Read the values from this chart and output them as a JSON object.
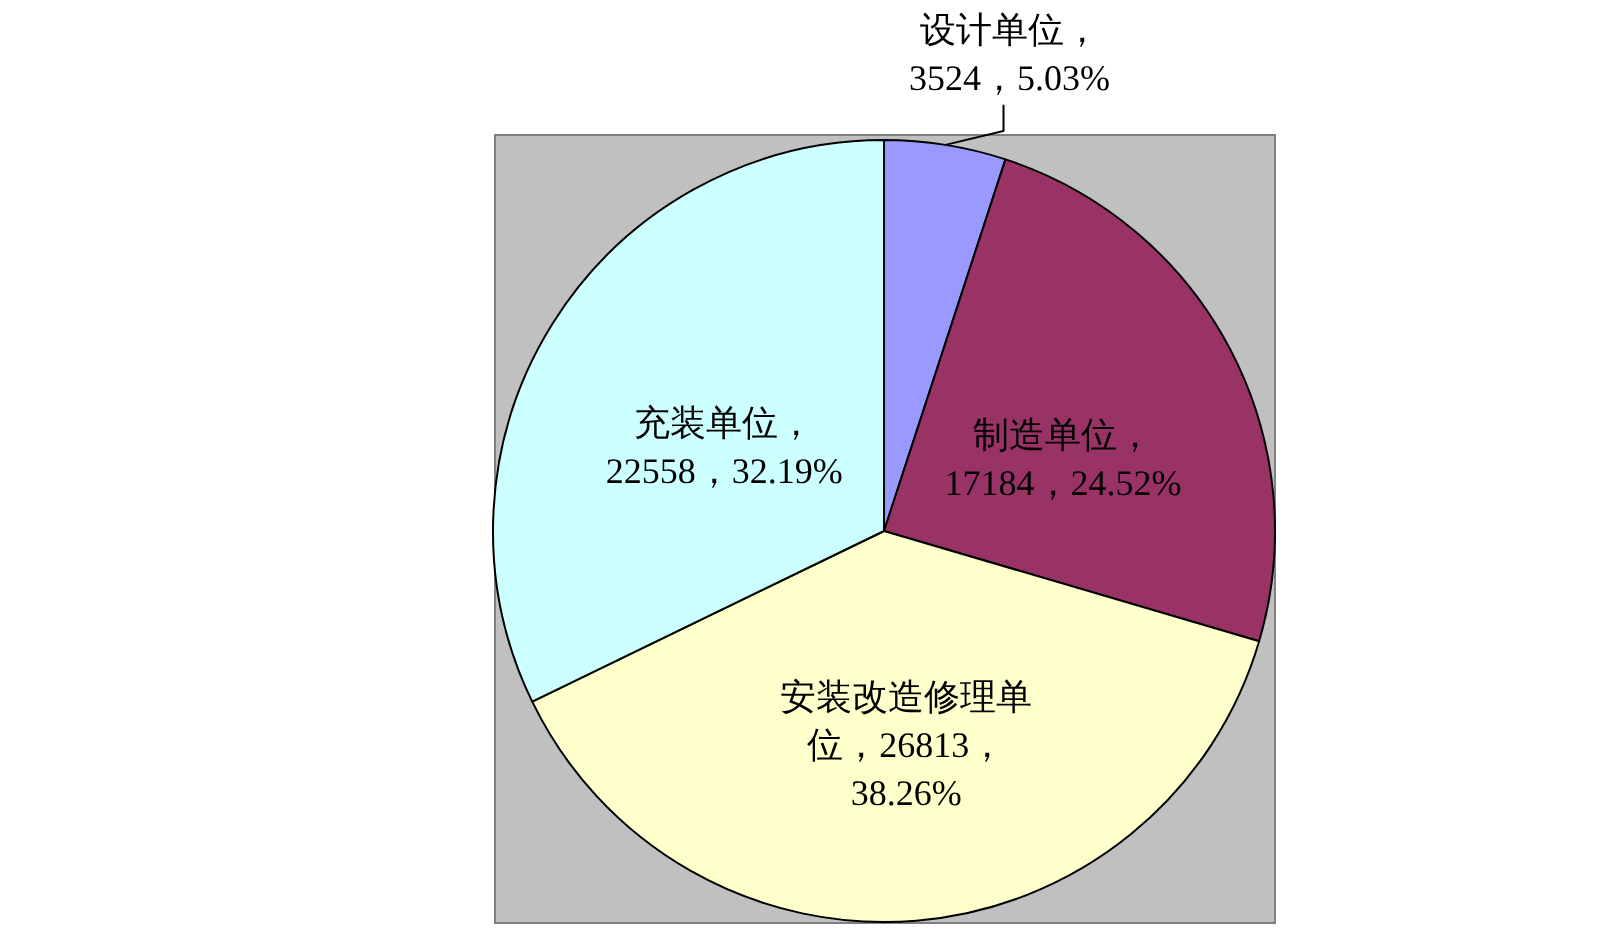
{
  "chart_data": {
    "type": "pie",
    "categories": [
      "设计单位",
      "制造单位",
      "安装改造修理单位",
      "充装单位"
    ],
    "values": [
      3524,
      17184,
      26813,
      22558
    ],
    "colors": [
      "#9999ff",
      "#993366",
      "#ffffcc",
      "#ccffff"
    ],
    "value_labels": [
      "，3524，5.03%",
      "，17184，24.52%",
      "，26813，38.26%",
      "，22558，32.19%"
    ]
  }
}
